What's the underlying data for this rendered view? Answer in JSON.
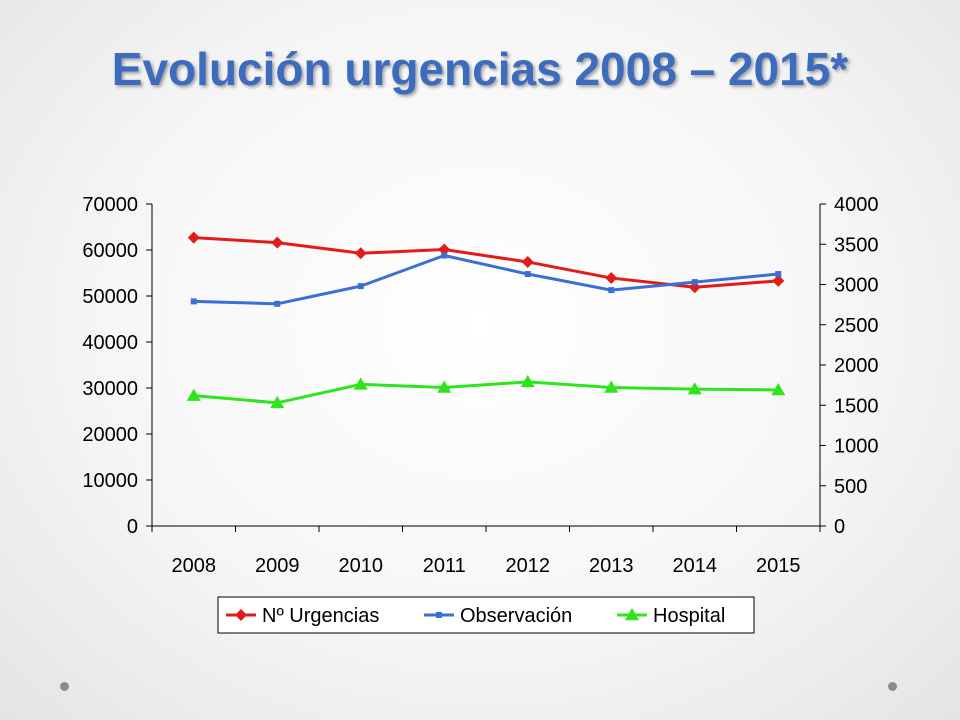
{
  "slide": {
    "title": "Evolución urgencias 2008 – 2015*"
  },
  "chart_data": {
    "type": "line",
    "categories": [
      "2008",
      "2009",
      "2010",
      "2011",
      "2012",
      "2013",
      "2014",
      "2015"
    ],
    "series": [
      {
        "name": "Nº Urgencias",
        "axis": "left",
        "color": "#e31b1b",
        "marker": "diamond",
        "values": [
          62700,
          61600,
          59300,
          60100,
          57400,
          53900,
          51900,
          53300
        ]
      },
      {
        "name": "Observación",
        "axis": "right",
        "color": "#3c6fd6",
        "marker": "square",
        "values": [
          2790,
          2760,
          2980,
          3360,
          3130,
          2930,
          3030,
          3130
        ]
      },
      {
        "name": "Hospital",
        "axis": "right",
        "color": "#2ee51c",
        "marker": "triangle",
        "values": [
          1620,
          1530,
          1760,
          1720,
          1790,
          1720,
          1700,
          1690
        ]
      }
    ],
    "y_left": {
      "ylim": [
        0,
        70000
      ],
      "ticks": [
        "0",
        "10000",
        "20000",
        "30000",
        "40000",
        "50000",
        "60000",
        "70000"
      ]
    },
    "y_right": {
      "ylim": [
        0,
        4000
      ],
      "ticks": [
        "0",
        "500",
        "1000",
        "1500",
        "2000",
        "2500",
        "3000",
        "3500",
        "4000"
      ]
    },
    "grid": false,
    "legend": "bottom",
    "xlabel": "",
    "ylabel": ""
  }
}
